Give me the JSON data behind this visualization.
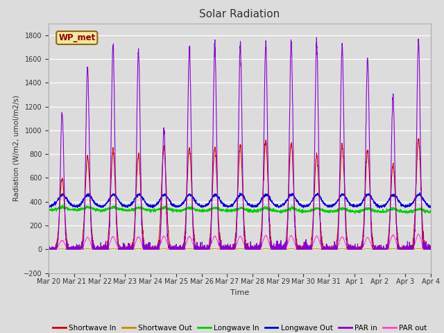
{
  "title": "Solar Radiation",
  "ylabel": "Radiation (W/m2, umol/m2/s)",
  "xlabel": "Time",
  "ylim": [
    -200,
    1900
  ],
  "yticks": [
    -200,
    0,
    200,
    400,
    600,
    800,
    1000,
    1200,
    1400,
    1600,
    1800
  ],
  "background_color": "#dcdcdc",
  "plot_bg_color": "#dcdcdc",
  "station_label": "WP_met",
  "legend_entries": [
    "Shortwave In",
    "Shortwave Out",
    "Longwave In",
    "Longwave Out",
    "PAR in",
    "PAR out"
  ],
  "legend_colors": [
    "#cc0000",
    "#cc8800",
    "#00cc00",
    "#0000cc",
    "#8800cc",
    "#ff44cc"
  ],
  "line_colors": {
    "shortwave_in": "#cc0000",
    "shortwave_out": "#cc8800",
    "longwave_in": "#00cc00",
    "longwave_out": "#0000cc",
    "par_in": "#8800cc",
    "par_out": "#ff44cc"
  },
  "num_days": 15,
  "sw_peaks": [
    600,
    780,
    830,
    800,
    855,
    855,
    855,
    870,
    905,
    895,
    795,
    870,
    835,
    705,
    930
  ],
  "par_peaks": [
    1150,
    1540,
    1720,
    1670,
    1000,
    1690,
    1710,
    1720,
    1730,
    1740,
    1730,
    1710,
    1620,
    1290,
    1760
  ],
  "par_out_peaks": [
    75,
    100,
    105,
    105,
    110,
    110,
    110,
    110,
    115,
    115,
    110,
    105,
    100,
    120,
    125
  ],
  "lw_in_base": 330,
  "lw_out_base": 360,
  "x_tick_labels": [
    "Mar 20",
    "Mar 21",
    "Mar 22",
    "Mar 23",
    "Mar 24",
    "Mar 25",
    "Mar 26",
    "Mar 27",
    "Mar 28",
    "Mar 29",
    "Mar 30",
    "Mar 31",
    "Apr 1",
    "Apr 2",
    "Apr 3",
    "Apr 4"
  ]
}
